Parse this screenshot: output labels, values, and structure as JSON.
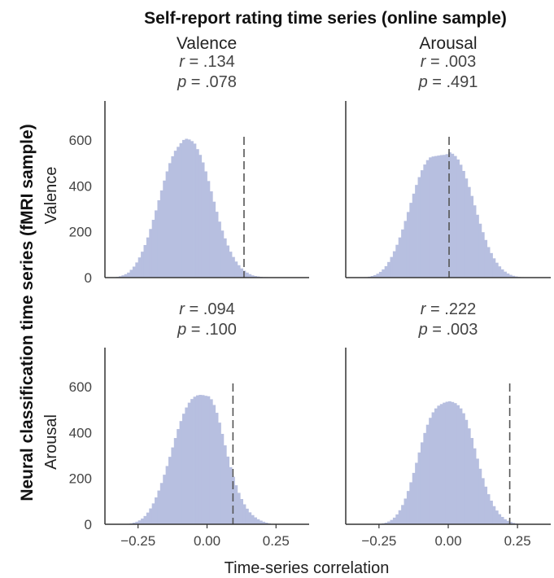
{
  "figure": {
    "suptitle": "Self-report rating time series (online sample)",
    "supylabel": "Neural classification time series (fMRI sample)",
    "xlabel": "Time-series correlation",
    "column_titles": [
      "Valence",
      "Arousal"
    ],
    "row_labels": [
      "Valence",
      "Arousal"
    ],
    "bar_color": "#b7bfe0",
    "line_color": "#555555",
    "axis_color": "#333333"
  },
  "chart_data": [
    {
      "type": "bar",
      "panel": "valence-valence",
      "stat_r": ".134",
      "stat_p": ".078",
      "observed": 0.134,
      "bin_centers": [
        -0.325,
        -0.315,
        -0.305,
        -0.295,
        -0.285,
        -0.275,
        -0.265,
        -0.255,
        -0.245,
        -0.235,
        -0.225,
        -0.215,
        -0.205,
        -0.195,
        -0.185,
        -0.175,
        -0.165,
        -0.155,
        -0.145,
        -0.135,
        -0.125,
        -0.115,
        -0.105,
        -0.095,
        -0.085,
        -0.075,
        -0.065,
        -0.055,
        -0.045,
        -0.035,
        -0.025,
        -0.015,
        -0.005,
        0.005,
        0.015,
        0.025,
        0.035,
        0.045,
        0.055,
        0.065,
        0.075,
        0.085,
        0.095,
        0.105,
        0.115,
        0.125,
        0.135,
        0.145,
        0.155,
        0.165,
        0.175,
        0.185,
        0.195,
        0.205,
        0.215,
        0.225,
        0.235,
        0.245,
        0.255,
        0.265
      ],
      "values": [
        3,
        6,
        10,
        15,
        22,
        34,
        48,
        66,
        88,
        113,
        142,
        175,
        212,
        252,
        293,
        337,
        380,
        423,
        463,
        499,
        529,
        553,
        570,
        586,
        600,
        605,
        602,
        595,
        584,
        560,
        535,
        502,
        463,
        421,
        376,
        331,
        287,
        244,
        205,
        171,
        140,
        113,
        90,
        70,
        54,
        40,
        30,
        22,
        15,
        10,
        7,
        5,
        3,
        2,
        2,
        1,
        1,
        1,
        0,
        0
      ],
      "xticks": [],
      "yticks": [
        "0",
        "200",
        "400",
        "600"
      ],
      "xlim": [
        -0.37,
        0.37
      ],
      "ylim": [
        0,
        770
      ]
    },
    {
      "type": "bar",
      "panel": "valence-arousal",
      "stat_r": ".003",
      "stat_p": ".491",
      "observed": 0.003,
      "bin_centers": [
        -0.295,
        -0.285,
        -0.275,
        -0.265,
        -0.255,
        -0.245,
        -0.235,
        -0.225,
        -0.215,
        -0.205,
        -0.195,
        -0.185,
        -0.175,
        -0.165,
        -0.155,
        -0.145,
        -0.135,
        -0.125,
        -0.115,
        -0.105,
        -0.095,
        -0.085,
        -0.075,
        -0.065,
        -0.055,
        -0.045,
        -0.035,
        -0.025,
        -0.015,
        -0.005,
        0.005,
        0.015,
        0.025,
        0.035,
        0.045,
        0.055,
        0.065,
        0.075,
        0.085,
        0.095,
        0.105,
        0.115,
        0.125,
        0.135,
        0.145,
        0.155,
        0.165,
        0.175,
        0.185,
        0.195,
        0.205,
        0.215,
        0.225,
        0.235,
        0.245,
        0.255,
        0.265,
        0.275
      ],
      "values": [
        2,
        4,
        7,
        11,
        17,
        25,
        36,
        50,
        68,
        90,
        115,
        143,
        175,
        210,
        247,
        286,
        326,
        366,
        404,
        438,
        468,
        493,
        512,
        524,
        528,
        530,
        532,
        534,
        535,
        538,
        546,
        540,
        530,
        515,
        492,
        465,
        432,
        395,
        356,
        315,
        274,
        235,
        198,
        164,
        133,
        107,
        84,
        65,
        49,
        36,
        26,
        18,
        12,
        8,
        5,
        3,
        2,
        1
      ],
      "xticks": [],
      "yticks": [],
      "xlim": [
        -0.37,
        0.37
      ],
      "ylim": [
        0,
        770
      ]
    },
    {
      "type": "bar",
      "panel": "arousal-valence",
      "stat_r": ".094",
      "stat_p": ".100",
      "observed": 0.094,
      "bin_centers": [
        -0.285,
        -0.275,
        -0.265,
        -0.255,
        -0.245,
        -0.235,
        -0.225,
        -0.215,
        -0.205,
        -0.195,
        -0.185,
        -0.175,
        -0.165,
        -0.155,
        -0.145,
        -0.135,
        -0.125,
        -0.115,
        -0.105,
        -0.095,
        -0.085,
        -0.075,
        -0.065,
        -0.055,
        -0.045,
        -0.035,
        -0.025,
        -0.015,
        -0.005,
        0.005,
        0.015,
        0.025,
        0.035,
        0.045,
        0.055,
        0.065,
        0.075,
        0.085,
        0.095,
        0.105,
        0.115,
        0.125,
        0.135,
        0.145,
        0.155,
        0.165,
        0.175,
        0.185,
        0.195,
        0.205,
        0.215,
        0.225,
        0.235
      ],
      "values": [
        2,
        4,
        7,
        11,
        17,
        25,
        36,
        51,
        69,
        91,
        117,
        147,
        180,
        216,
        254,
        294,
        335,
        376,
        415,
        450,
        482,
        509,
        530,
        546,
        556,
        562,
        564,
        563,
        560,
        558,
        545,
        520,
        486,
        443,
        394,
        344,
        295,
        249,
        207,
        170,
        137,
        110,
        87,
        68,
        52,
        40,
        30,
        22,
        16,
        11,
        7,
        4,
        2
      ],
      "xticks": [
        "−0.25",
        "0.00",
        "0.25"
      ],
      "yticks": [
        "0",
        "200",
        "400",
        "600"
      ],
      "xlim": [
        -0.37,
        0.37
      ],
      "ylim": [
        0,
        770
      ]
    },
    {
      "type": "bar",
      "panel": "arousal-arousal",
      "stat_r": ".222",
      "stat_p": ".003",
      "observed": 0.222,
      "bin_centers": [
        -0.245,
        -0.235,
        -0.225,
        -0.215,
        -0.205,
        -0.195,
        -0.185,
        -0.175,
        -0.165,
        -0.155,
        -0.145,
        -0.135,
        -0.125,
        -0.115,
        -0.105,
        -0.095,
        -0.085,
        -0.075,
        -0.065,
        -0.055,
        -0.045,
        -0.035,
        -0.025,
        -0.015,
        -0.005,
        0.005,
        0.015,
        0.025,
        0.035,
        0.045,
        0.055,
        0.065,
        0.075,
        0.085,
        0.095,
        0.105,
        0.115,
        0.125,
        0.135,
        0.145,
        0.155,
        0.165,
        0.175,
        0.185,
        0.195,
        0.205,
        0.215,
        0.225,
        0.235,
        0.245
      ],
      "values": [
        2,
        4,
        7,
        12,
        19,
        29,
        43,
        61,
        84,
        112,
        145,
        183,
        224,
        268,
        313,
        357,
        398,
        434,
        464,
        488,
        505,
        517,
        524,
        530,
        534,
        536,
        533,
        528,
        519,
        505,
        484,
        455,
        418,
        376,
        331,
        286,
        242,
        201,
        164,
        131,
        103,
        79,
        60,
        44,
        32,
        22,
        15,
        10,
        6,
        3
      ],
      "xticks": [
        "−0.25",
        "0.00",
        "0.25"
      ],
      "yticks": [],
      "xlim": [
        -0.37,
        0.37
      ],
      "ylim": [
        0,
        770
      ]
    }
  ]
}
